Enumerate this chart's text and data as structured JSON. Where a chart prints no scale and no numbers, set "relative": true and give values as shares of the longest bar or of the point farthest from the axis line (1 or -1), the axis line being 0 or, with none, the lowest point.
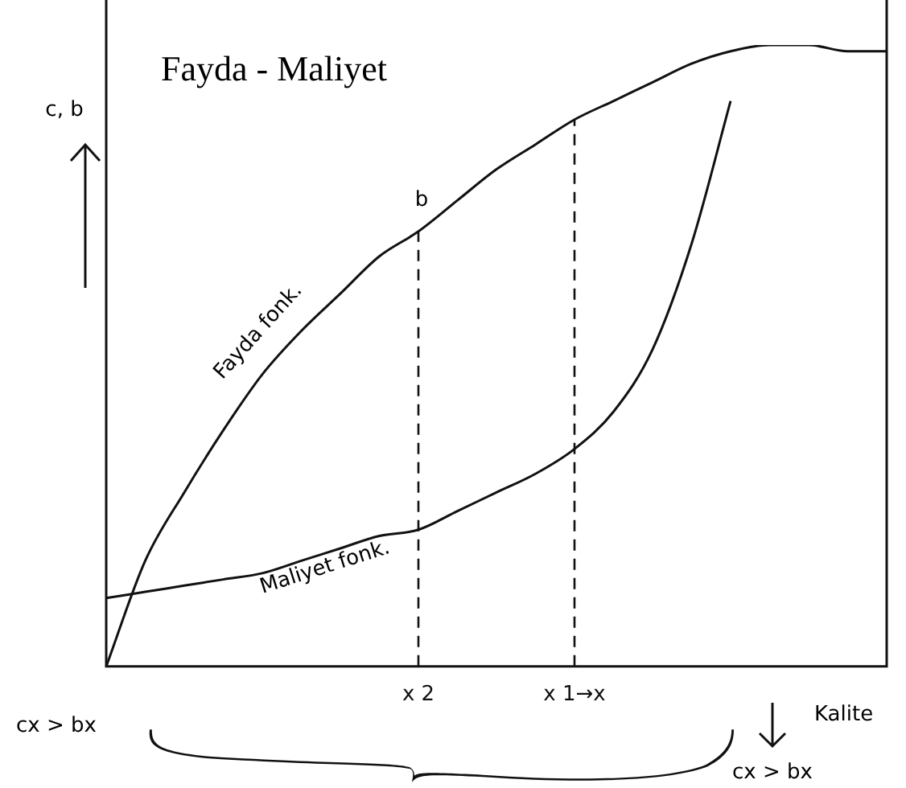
{
  "chart_data": {
    "type": "line",
    "title": "Fayda - Maliyet",
    "xlabel": "Kalite",
    "ylabel": "c, b",
    "relative": true,
    "legend": false,
    "grid": false,
    "marker": "none",
    "categories": [
      null,
      null,
      null,
      null,
      null,
      null,
      null,
      null,
      "x 2",
      null,
      null,
      null,
      "x 1→x",
      null,
      null,
      null,
      null,
      null,
      null,
      null,
      null
    ],
    "series": [
      {
        "name": "Fayda fonk.",
        "color": "#111111",
        "values": [
          0,
          0.17,
          0.28,
          0.38,
          0.47,
          0.54,
          0.6,
          0.66,
          0.7,
          0.75,
          0.8,
          0.84,
          0.88,
          0.91,
          0.94,
          0.97,
          0.99,
          1,
          1,
          0.99,
          0.99
        ]
      },
      {
        "name": "Maliyet fonk.",
        "color": "#111111",
        "values": [
          0.11,
          0.12,
          0.13,
          0.14,
          0.15,
          0.17,
          0.19,
          0.21,
          0.22,
          0.25,
          0.28,
          0.31,
          0.35,
          0.41,
          0.51,
          0.68,
          0.91,
          null,
          null,
          null,
          null
        ]
      }
    ],
    "ref_lines": [
      {
        "axis": "x",
        "value": "x 2",
        "line_style": "dashed"
      },
      {
        "axis": "x",
        "value": "x 1→x",
        "line_style": "dashed"
      }
    ],
    "annotations": [
      "cx > bx",
      "cx > bx",
      "b"
    ]
  }
}
